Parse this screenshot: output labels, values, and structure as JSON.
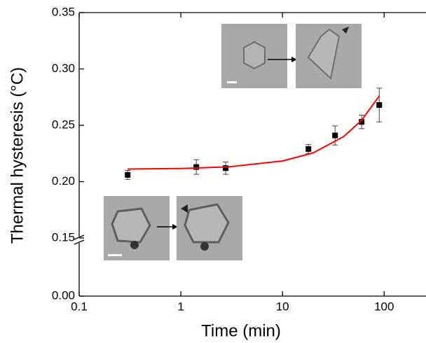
{
  "chart_data": {
    "type": "scatter",
    "x_label": "Time (min)",
    "y_label": "Thermal hysteresis (°C)",
    "xscale": "log",
    "xlim": [
      0.1,
      250
    ],
    "xticks": [
      0.1,
      1,
      10,
      100
    ],
    "ylim": [
      0,
      0.35
    ],
    "ybreak": 0.15,
    "yticks": [
      {
        "value": 0,
        "label": "0.00"
      },
      0.15,
      {
        "value": 0.2,
        "label": "0.20"
      },
      0.25,
      {
        "value": 0.3,
        "label": "0.30"
      },
      0.35
    ],
    "series": [
      {
        "type": "scatter",
        "color": "#000000",
        "x": [
          0.3,
          1.42,
          2.76,
          18.0,
          32.9,
          60.1,
          89.5
        ],
        "values": [
          0.206,
          0.213,
          0.212,
          0.229,
          0.241,
          0.253,
          0.268
        ],
        "errors": [
          0.004,
          0.0065,
          0.0055,
          0.004,
          0.0085,
          0.006,
          0.015
        ]
      },
      {
        "type": "line",
        "color": "#ff0000",
        "x": [
          0.3,
          1,
          3,
          10,
          20,
          40,
          60,
          90
        ],
        "values": [
          0.2112,
          0.2117,
          0.2132,
          0.2183,
          0.2255,
          0.24,
          0.2545,
          0.2763
        ]
      }
    ]
  }
}
